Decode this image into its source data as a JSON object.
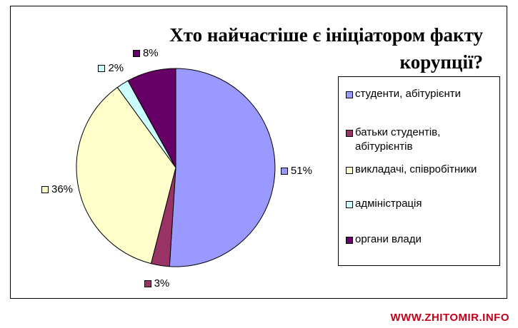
{
  "chart_data": {
    "type": "pie",
    "title_lines": [
      "Хто найчастіше є ініціатором факту",
      "корупції?"
    ],
    "slices": [
      {
        "name": "студенти, абітурієнти",
        "value": 51,
        "label": "51%",
        "color": "#9999ff"
      },
      {
        "name": "батьки студентів, абітурієнтів",
        "value": 3,
        "label": "3%",
        "color": "#993366"
      },
      {
        "name": "викладачі, співробітники",
        "value": 36,
        "label": "36%",
        "color": "#ffffcc"
      },
      {
        "name": "адміністрація",
        "value": 2,
        "label": "2%",
        "color": "#ccffff"
      },
      {
        "name": "органи влади",
        "value": 8,
        "label": "8%",
        "color": "#660066"
      }
    ],
    "legend_position": "right",
    "start_angle_deg": 0,
    "direction": "clockwise"
  },
  "watermark": "WWW.ZHITOMIR.INFO"
}
